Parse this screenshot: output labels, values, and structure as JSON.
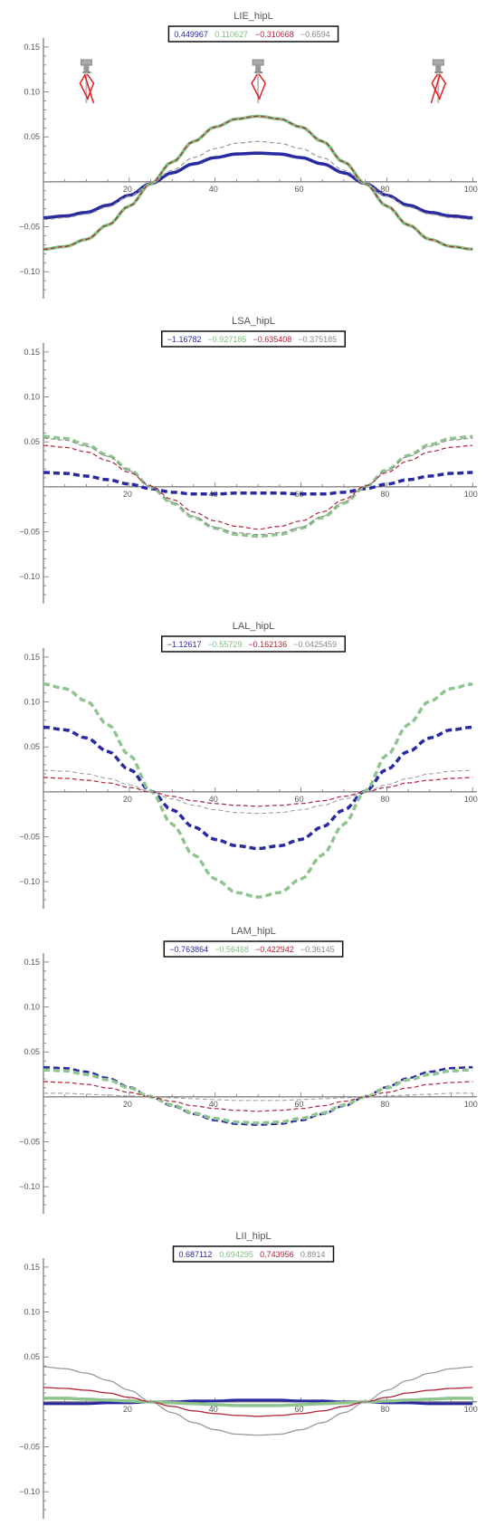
{
  "chart_data": [
    {
      "type": "line",
      "title": "LIE_hipL",
      "x": [
        0,
        5,
        10,
        15,
        20,
        25,
        30,
        35,
        40,
        45,
        50,
        55,
        60,
        65,
        70,
        75,
        80,
        85,
        90,
        95,
        100
      ],
      "xlim": [
        0,
        101
      ],
      "ylim": [
        -0.13,
        0.16
      ],
      "xticks": [
        20,
        40,
        60,
        80,
        100
      ],
      "yticks": [
        0.15,
        0.1,
        0.05,
        -0.05,
        -0.1
      ],
      "ytick_labels": [
        "0.15",
        "0.10",
        "0.05",
        "−0.05",
        "−0.10"
      ],
      "legend": [
        "0.449967",
        "0.110627",
        "−0.310668",
        "−0.6594"
      ],
      "legend_colors": [
        "#2a2aa0",
        "#7fbf7f",
        "#b0243a",
        "#888888"
      ],
      "series": [
        {
          "values": [
            -0.04,
            -0.038,
            -0.034,
            -0.026,
            -0.015,
            -0.002,
            0.01,
            0.02,
            0.027,
            0.031,
            0.032,
            0.031,
            0.027,
            0.02,
            0.01,
            -0.002,
            -0.015,
            -0.026,
            -0.034,
            -0.038,
            -0.04
          ],
          "color": "#2a2aa0",
          "style": "solid",
          "width": 3.5
        },
        {
          "values": [
            -0.075,
            -0.072,
            -0.064,
            -0.048,
            -0.027,
            -0.002,
            0.022,
            0.045,
            0.061,
            0.07,
            0.073,
            0.07,
            0.061,
            0.045,
            0.022,
            -0.002,
            -0.027,
            -0.048,
            -0.064,
            -0.072,
            -0.075
          ],
          "color": "#7fbf7f",
          "style": "solid",
          "width": 3.5
        },
        {
          "values": [
            -0.075,
            -0.072,
            -0.064,
            -0.048,
            -0.027,
            -0.002,
            0.022,
            0.045,
            0.061,
            0.07,
            0.073,
            0.07,
            0.061,
            0.045,
            0.022,
            -0.002,
            -0.027,
            -0.048,
            -0.064,
            -0.072,
            -0.075
          ],
          "color": "#b0243a",
          "style": "dashed",
          "width": 1.2
        },
        {
          "values": [
            -0.042,
            -0.04,
            -0.036,
            -0.028,
            -0.016,
            -0.002,
            0.013,
            0.027,
            0.037,
            0.043,
            0.045,
            0.043,
            0.037,
            0.027,
            0.013,
            -0.002,
            -0.016,
            -0.028,
            -0.036,
            -0.04,
            -0.042
          ],
          "color": "#999999",
          "style": "dashed",
          "width": 1.2
        }
      ],
      "figures": [
        10,
        50,
        92
      ]
    },
    {
      "type": "line",
      "title": "LSA_hipL",
      "x": [
        0,
        5,
        10,
        15,
        20,
        25,
        30,
        35,
        40,
        45,
        50,
        55,
        60,
        65,
        70,
        75,
        80,
        85,
        90,
        95,
        100
      ],
      "xlim": [
        0,
        101
      ],
      "ylim": [
        -0.13,
        0.16
      ],
      "xticks": [
        20,
        40,
        60,
        80,
        100
      ],
      "yticks": [
        0.15,
        0.1,
        0.05,
        -0.05,
        -0.1
      ],
      "ytick_labels": [
        "0.15",
        "0.10",
        "0.05",
        "−0.05",
        "−0.10"
      ],
      "legend": [
        "−1.16782",
        "−0.927185",
        "−0.635408",
        "−0.375185"
      ],
      "legend_colors": [
        "#2a2aa0",
        "#7fbf7f",
        "#b0243a",
        "#888888"
      ],
      "series": [
        {
          "values": [
            0.016,
            0.015,
            0.012,
            0.008,
            0.003,
            -0.002,
            -0.006,
            -0.008,
            -0.008,
            -0.007,
            -0.007,
            -0.007,
            -0.008,
            -0.008,
            -0.006,
            -0.002,
            0.003,
            0.008,
            0.012,
            0.015,
            0.016
          ],
          "color": "#2a2aa0",
          "style": "dashed",
          "width": 3.5
        },
        {
          "values": [
            0.056,
            0.054,
            0.047,
            0.035,
            0.019,
            0.0,
            -0.018,
            -0.034,
            -0.046,
            -0.053,
            -0.055,
            -0.053,
            -0.046,
            -0.034,
            -0.018,
            0.0,
            0.019,
            0.035,
            0.047,
            0.054,
            0.056
          ],
          "color": "#8fc48f",
          "style": "dashed",
          "width": 3.5
        },
        {
          "values": [
            0.046,
            0.044,
            0.039,
            0.029,
            0.016,
            0.001,
            -0.014,
            -0.028,
            -0.038,
            -0.044,
            -0.047,
            -0.044,
            -0.038,
            -0.028,
            -0.014,
            0.001,
            0.016,
            0.029,
            0.039,
            0.044,
            0.046
          ],
          "color": "#b0243a",
          "style": "dashed",
          "width": 1.2
        },
        {
          "values": [
            0.054,
            0.052,
            0.045,
            0.034,
            0.018,
            0.0,
            -0.017,
            -0.033,
            -0.045,
            -0.051,
            -0.053,
            -0.051,
            -0.045,
            -0.033,
            -0.017,
            0.0,
            0.018,
            0.034,
            0.045,
            0.052,
            0.054
          ],
          "color": "#888888",
          "style": "dashed",
          "width": 1.0
        }
      ],
      "figures": []
    },
    {
      "type": "line",
      "title": "LAL_hipL",
      "x": [
        0,
        5,
        10,
        15,
        20,
        25,
        30,
        35,
        40,
        45,
        50,
        55,
        60,
        65,
        70,
        75,
        80,
        85,
        90,
        95,
        100
      ],
      "xlim": [
        0,
        101
      ],
      "ylim": [
        -0.13,
        0.16
      ],
      "xticks": [
        20,
        40,
        60,
        80,
        100
      ],
      "yticks": [
        0.15,
        0.1,
        0.05,
        -0.05,
        -0.1
      ],
      "ytick_labels": [
        "0.15",
        "0.10",
        "0.05",
        "−0.05",
        "−0.10"
      ],
      "legend": [
        "−1.12617",
        "−0.55729",
        "−0.162136",
        "−0.0425459"
      ],
      "legend_colors": [
        "#2a2aa0",
        "#7fbf7f",
        "#b0243a",
        "#888888"
      ],
      "series": [
        {
          "values": [
            0.072,
            0.069,
            0.06,
            0.045,
            0.025,
            0.001,
            -0.02,
            -0.039,
            -0.053,
            -0.06,
            -0.063,
            -0.06,
            -0.053,
            -0.039,
            -0.02,
            0.001,
            0.025,
            0.045,
            0.06,
            0.069,
            0.072
          ],
          "color": "#2a2aa0",
          "style": "dashed",
          "width": 3.5
        },
        {
          "values": [
            0.12,
            0.115,
            0.101,
            0.075,
            0.041,
            0.001,
            -0.036,
            -0.07,
            -0.097,
            -0.112,
            -0.117,
            -0.112,
            -0.097,
            -0.07,
            -0.036,
            0.001,
            0.041,
            0.075,
            0.101,
            0.115,
            0.12
          ],
          "color": "#8fc48f",
          "style": "dashed",
          "width": 3.5
        },
        {
          "values": [
            0.016,
            0.015,
            0.013,
            0.01,
            0.005,
            0.0,
            -0.005,
            -0.01,
            -0.013,
            -0.015,
            -0.016,
            -0.015,
            -0.013,
            -0.01,
            -0.005,
            0.0,
            0.005,
            0.01,
            0.013,
            0.015,
            0.016
          ],
          "color": "#b0243a",
          "style": "dashed",
          "width": 1.2
        },
        {
          "values": [
            0.024,
            0.023,
            0.02,
            0.015,
            0.008,
            0.0,
            -0.008,
            -0.015,
            -0.02,
            -0.023,
            -0.024,
            -0.023,
            -0.02,
            -0.015,
            -0.008,
            0.0,
            0.008,
            0.015,
            0.02,
            0.023,
            0.024
          ],
          "color": "#999999",
          "style": "dashed",
          "width": 1.0
        }
      ],
      "figures": []
    },
    {
      "type": "line",
      "title": "LAM_hipL",
      "x": [
        0,
        5,
        10,
        15,
        20,
        25,
        30,
        35,
        40,
        45,
        50,
        55,
        60,
        65,
        70,
        75,
        80,
        85,
        90,
        95,
        100
      ],
      "xlim": [
        0,
        101
      ],
      "ylim": [
        -0.13,
        0.16
      ],
      "xticks": [
        20,
        40,
        60,
        80,
        100
      ],
      "yticks": [
        0.15,
        0.1,
        0.05,
        -0.05,
        -0.1
      ],
      "ytick_labels": [
        "0.15",
        "0.10",
        "0.05",
        "−0.05",
        "−0.10"
      ],
      "legend": [
        "−0.763864",
        "−0.56468",
        "−0.422942",
        "−0.36145"
      ],
      "legend_colors": [
        "#2a2aa0",
        "#7fbf7f",
        "#b0243a",
        "#888888"
      ],
      "series": [
        {
          "values": [
            0.033,
            0.032,
            0.028,
            0.021,
            0.011,
            0.0,
            -0.01,
            -0.019,
            -0.026,
            -0.03,
            -0.031,
            -0.03,
            -0.026,
            -0.019,
            -0.01,
            0.0,
            0.011,
            0.021,
            0.028,
            0.032,
            0.033
          ],
          "color": "#2a2aa0",
          "style": "dashed",
          "width": 2.5
        },
        {
          "values": [
            0.03,
            0.029,
            0.025,
            0.019,
            0.01,
            0.0,
            -0.009,
            -0.018,
            -0.024,
            -0.028,
            -0.029,
            -0.028,
            -0.024,
            -0.018,
            -0.009,
            0.0,
            0.01,
            0.019,
            0.025,
            0.029,
            0.03
          ],
          "color": "#8fc48f",
          "style": "dashed",
          "width": 3.5
        },
        {
          "values": [
            0.017,
            0.016,
            0.014,
            0.01,
            0.005,
            0.0,
            -0.005,
            -0.01,
            -0.013,
            -0.015,
            -0.016,
            -0.015,
            -0.013,
            -0.01,
            -0.005,
            0.0,
            0.005,
            0.01,
            0.014,
            0.016,
            0.017
          ],
          "color": "#b0243a",
          "style": "dashed",
          "width": 1.2
        },
        {
          "values": [
            0.004,
            0.004,
            0.003,
            0.002,
            0.001,
            0.0,
            -0.001,
            -0.002,
            -0.003,
            -0.004,
            -0.004,
            -0.004,
            -0.003,
            -0.002,
            -0.001,
            0.0,
            0.001,
            0.002,
            0.003,
            0.004,
            0.004
          ],
          "color": "#999999",
          "style": "dashed",
          "width": 1.0
        }
      ],
      "figures": []
    },
    {
      "type": "line",
      "title": "LII_hipL",
      "x": [
        0,
        5,
        10,
        15,
        20,
        25,
        30,
        35,
        40,
        45,
        50,
        55,
        60,
        65,
        70,
        75,
        80,
        85,
        90,
        95,
        100
      ],
      "xlim": [
        0,
        101
      ],
      "ylim": [
        -0.13,
        0.16
      ],
      "xticks": [
        20,
        40,
        60,
        80,
        100
      ],
      "yticks": [
        0.15,
        0.1,
        0.05,
        -0.05,
        -0.1
      ],
      "ytick_labels": [
        "0.15",
        "0.10",
        "0.05",
        "−0.05",
        "−0.10"
      ],
      "legend": [
        "0.687112",
        "0.694295",
        "0.743956",
        "0.8914"
      ],
      "legend_colors": [
        "#2a2aa0",
        "#7fbf7f",
        "#b0243a",
        "#888888"
      ],
      "series": [
        {
          "values": [
            -0.002,
            -0.002,
            -0.002,
            -0.001,
            -0.001,
            0.0,
            0.0,
            0.001,
            0.001,
            0.002,
            0.002,
            0.002,
            0.001,
            0.001,
            0.0,
            0.0,
            -0.001,
            -0.001,
            -0.002,
            -0.002,
            -0.002
          ],
          "color": "#2a2aa0",
          "style": "solid",
          "width": 3.0
        },
        {
          "values": [
            0.004,
            0.004,
            0.003,
            0.002,
            0.001,
            0.0,
            -0.001,
            -0.002,
            -0.003,
            -0.004,
            -0.004,
            -0.004,
            -0.003,
            -0.002,
            -0.001,
            0.0,
            0.001,
            0.002,
            0.003,
            0.004,
            0.004
          ],
          "color": "#8fc48f",
          "style": "solid",
          "width": 3.5
        },
        {
          "values": [
            0.016,
            0.015,
            0.013,
            0.01,
            0.005,
            0.0,
            -0.005,
            -0.01,
            -0.013,
            -0.015,
            -0.016,
            -0.015,
            -0.013,
            -0.01,
            -0.005,
            0.0,
            0.005,
            0.01,
            0.013,
            0.015,
            0.016
          ],
          "color": "#b0243a",
          "style": "solid",
          "width": 1.3
        },
        {
          "values": [
            0.039,
            0.037,
            0.032,
            0.024,
            0.013,
            0.0,
            -0.012,
            -0.023,
            -0.031,
            -0.036,
            -0.037,
            -0.036,
            -0.031,
            -0.023,
            -0.012,
            0.0,
            0.013,
            0.024,
            0.032,
            0.037,
            0.039
          ],
          "color": "#9a9a9a",
          "style": "solid",
          "width": 1.3
        }
      ],
      "figures": []
    }
  ]
}
